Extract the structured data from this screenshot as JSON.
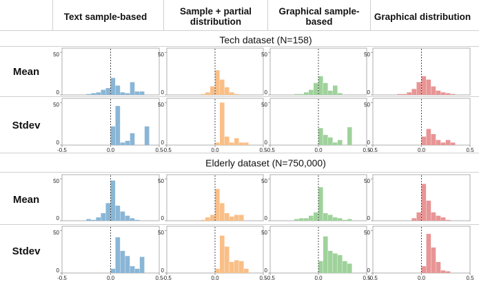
{
  "columns": [
    "Text sample-based",
    "Sample + partial distribution",
    "Graphical sample-based",
    "Graphical distribution"
  ],
  "colors": [
    "#8ab6d6",
    "#f9bf87",
    "#9fd29b",
    "#e89595"
  ],
  "datasets": [
    {
      "title": "Tech dataset (N=158)"
    },
    {
      "title": "Elderly dataset (N=750,000)"
    }
  ],
  "row_labels": [
    "Mean",
    "Stdev",
    "Mean",
    "Stdev"
  ],
  "chart_data": {
    "type": "bar",
    "subtype": "histogram-grid",
    "xlim": [
      -0.5,
      0.5
    ],
    "ylim": [
      0,
      55
    ],
    "x_ticks": [
      -0.5,
      0.0,
      0.5
    ],
    "x_tick_labels": [
      "-0.5",
      "0.0",
      "0.5"
    ],
    "y_ticks": [
      0,
      50
    ],
    "y_tick_labels": [
      "0",
      "50"
    ],
    "reference_line": 0.0,
    "bin_width": 0.05,
    "bin_start": -0.5,
    "panels": [
      {
        "row": 0,
        "col": 0,
        "counts": [
          0,
          0,
          0,
          0,
          0,
          1,
          2,
          3,
          6,
          8,
          20,
          11,
          3,
          2,
          15,
          4,
          4,
          0,
          0,
          0
        ]
      },
      {
        "row": 0,
        "col": 1,
        "counts": [
          0,
          0,
          0,
          0,
          0,
          0,
          0,
          1,
          3,
          10,
          29,
          18,
          9,
          3,
          1,
          0,
          0,
          0,
          0,
          0
        ]
      },
      {
        "row": 0,
        "col": 2,
        "counts": [
          0,
          0,
          0,
          0,
          0,
          1,
          1,
          3,
          6,
          14,
          22,
          14,
          5,
          11,
          2,
          0,
          0,
          0,
          0,
          0
        ]
      },
      {
        "row": 0,
        "col": 3,
        "counts": [
          0,
          0,
          0,
          0,
          0,
          1,
          1,
          3,
          7,
          15,
          22,
          18,
          10,
          5,
          3,
          2,
          1,
          0,
          0,
          0
        ]
      },
      {
        "row": 1,
        "col": 0,
        "counts": [
          0,
          0,
          0,
          0,
          0,
          0,
          0,
          0,
          0,
          0,
          22,
          46,
          3,
          5,
          14,
          0,
          0,
          22,
          0,
          0
        ]
      },
      {
        "row": 1,
        "col": 1,
        "counts": [
          0,
          0,
          0,
          0,
          0,
          0,
          0,
          0,
          0,
          0,
          3,
          50,
          10,
          3,
          8,
          3,
          3,
          0,
          0,
          0
        ]
      },
      {
        "row": 1,
        "col": 2,
        "counts": [
          0,
          0,
          0,
          0,
          0,
          0,
          0,
          0,
          0,
          0,
          20,
          12,
          9,
          3,
          6,
          0,
          21,
          0,
          0,
          0
        ]
      },
      {
        "row": 1,
        "col": 3,
        "counts": [
          0,
          0,
          0,
          0,
          0,
          0,
          0,
          0,
          0,
          0,
          10,
          19,
          13,
          6,
          3,
          6,
          3,
          0,
          0,
          0
        ]
      },
      {
        "row": 2,
        "col": 0,
        "counts": [
          0,
          0,
          0,
          0,
          0,
          2,
          1,
          4,
          9,
          21,
          48,
          18,
          11,
          6,
          3,
          1,
          0,
          0,
          0,
          0
        ]
      },
      {
        "row": 2,
        "col": 1,
        "counts": [
          0,
          0,
          0,
          0,
          0,
          0,
          0,
          1,
          4,
          7,
          38,
          21,
          9,
          5,
          7,
          7,
          0,
          0,
          0,
          0
        ]
      },
      {
        "row": 2,
        "col": 2,
        "counts": [
          0,
          0,
          0,
          0,
          0,
          2,
          3,
          3,
          6,
          10,
          40,
          9,
          7,
          4,
          3,
          1,
          2,
          0,
          0,
          0
        ]
      },
      {
        "row": 2,
        "col": 3,
        "counts": [
          0,
          0,
          0,
          0,
          0,
          0,
          0,
          0,
          3,
          10,
          44,
          24,
          10,
          6,
          4,
          1,
          0,
          0,
          0,
          0
        ]
      },
      {
        "row": 3,
        "col": 0,
        "counts": [
          0,
          0,
          0,
          0,
          0,
          0,
          0,
          0,
          0,
          0,
          5,
          42,
          26,
          20,
          8,
          5,
          19,
          0,
          0,
          0
        ]
      },
      {
        "row": 3,
        "col": 1,
        "counts": [
          0,
          0,
          0,
          0,
          0,
          0,
          0,
          0,
          0,
          0,
          5,
          44,
          31,
          13,
          15,
          14,
          5,
          0,
          0,
          0
        ]
      },
      {
        "row": 3,
        "col": 2,
        "counts": [
          0,
          0,
          0,
          0,
          0,
          0,
          0,
          0,
          0,
          0,
          14,
          43,
          26,
          23,
          21,
          14,
          11,
          0,
          0,
          0
        ]
      },
      {
        "row": 3,
        "col": 3,
        "counts": [
          0,
          0,
          0,
          0,
          0,
          0,
          0,
          0,
          0,
          0,
          8,
          46,
          30,
          13,
          3,
          2,
          0,
          0,
          0,
          0
        ]
      }
    ]
  }
}
